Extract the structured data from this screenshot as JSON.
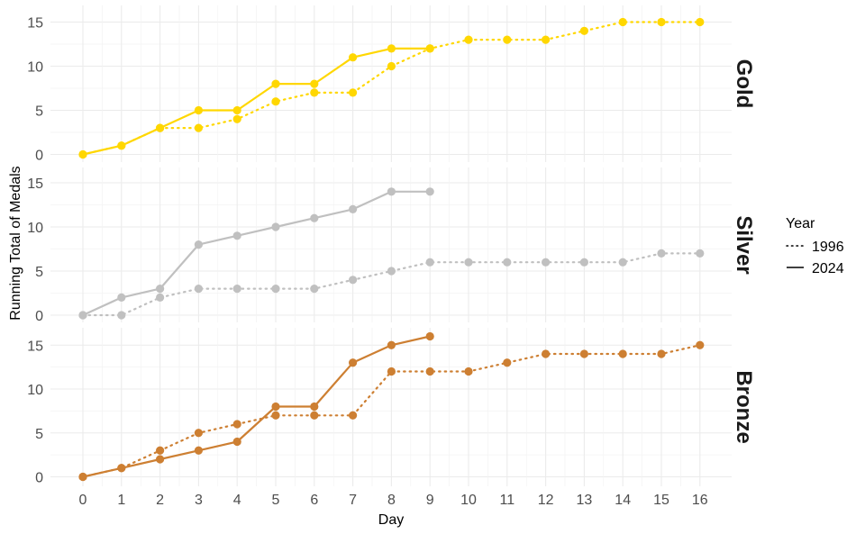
{
  "chart_data": {
    "type": "line",
    "xlabel": "Day",
    "ylabel": "Running Total of Medals",
    "x_ticks": [
      0,
      1,
      2,
      3,
      4,
      5,
      6,
      7,
      8,
      9,
      10,
      11,
      12,
      13,
      14,
      15,
      16
    ],
    "y_ticks": [
      0,
      5,
      10,
      15
    ],
    "xlim": [
      0,
      16
    ],
    "ylim": [
      0,
      16
    ],
    "grid": true,
    "legend": {
      "title": "Year",
      "placement": "right",
      "entries": [
        {
          "label": "1996",
          "linetype": "dotted"
        },
        {
          "label": "2024",
          "linetype": "solid"
        }
      ]
    },
    "facets": [
      {
        "label": "Gold",
        "color": "#FFD700",
        "series": [
          {
            "year": "1996",
            "linetype": "dotted",
            "x": [
              0,
              1,
              2,
              3,
              4,
              5,
              6,
              7,
              8,
              9,
              10,
              11,
              12,
              13,
              14,
              15,
              16
            ],
            "y": [
              0,
              1,
              3,
              3,
              4,
              6,
              7,
              7,
              10,
              12,
              13,
              13,
              13,
              14,
              15,
              15,
              15
            ]
          },
          {
            "year": "2024",
            "linetype": "solid",
            "x": [
              0,
              1,
              2,
              3,
              4,
              5,
              6,
              7,
              8,
              9
            ],
            "y": [
              0,
              1,
              3,
              5,
              5,
              8,
              8,
              11,
              12,
              12
            ]
          }
        ]
      },
      {
        "label": "Silver",
        "color": "#C0C0C0",
        "series": [
          {
            "year": "1996",
            "linetype": "dotted",
            "x": [
              0,
              1,
              2,
              3,
              4,
              5,
              6,
              7,
              8,
              9,
              10,
              11,
              12,
              13,
              14,
              15,
              16
            ],
            "y": [
              0,
              0,
              2,
              3,
              3,
              3,
              3,
              4,
              5,
              6,
              6,
              6,
              6,
              6,
              6,
              7,
              7
            ]
          },
          {
            "year": "2024",
            "linetype": "solid",
            "x": [
              0,
              1,
              2,
              3,
              4,
              5,
              6,
              7,
              8,
              9
            ],
            "y": [
              0,
              2,
              3,
              8,
              9,
              10,
              11,
              12,
              14,
              14
            ]
          }
        ]
      },
      {
        "label": "Bronze",
        "color": "#CD7F32",
        "series": [
          {
            "year": "1996",
            "linetype": "dotted",
            "x": [
              0,
              1,
              2,
              3,
              4,
              5,
              6,
              7,
              8,
              9,
              10,
              11,
              12,
              13,
              14,
              15,
              16
            ],
            "y": [
              0,
              1,
              3,
              5,
              6,
              7,
              7,
              7,
              12,
              12,
              12,
              13,
              14,
              14,
              14,
              14,
              15
            ]
          },
          {
            "year": "2024",
            "linetype": "solid",
            "x": [
              0,
              1,
              2,
              3,
              4,
              5,
              6,
              7,
              8,
              9
            ],
            "y": [
              0,
              1,
              2,
              3,
              4,
              8,
              8,
              13,
              15,
              16
            ]
          }
        ]
      }
    ]
  }
}
